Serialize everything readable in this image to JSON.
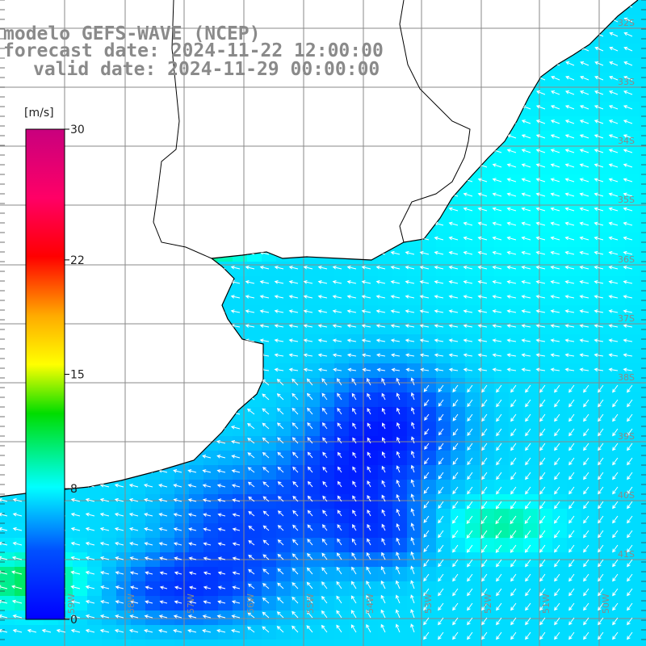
{
  "title": {
    "line1": "modelo GEFS-WAVE (NCEP)",
    "line2": "forecast date: 2024-11-22 12:00:00",
    "line3": "valid date: 2024-11-29 00:00:00"
  },
  "colorbar": {
    "unit": "[m/s]",
    "ticks": [
      {
        "value": 30,
        "label": "30"
      },
      {
        "value": 22,
        "label": "22"
      },
      {
        "value": 15,
        "label": "15"
      },
      {
        "value": 8,
        "label": "8"
      },
      {
        "value": 0,
        "label": "0"
      }
    ],
    "min": 0,
    "max": 30
  },
  "grid": {
    "lat_labels": [
      "32S",
      "33S",
      "34S",
      "35S",
      "36S",
      "37S",
      "38S",
      "39S",
      "40S",
      "41S"
    ],
    "lon_labels": [
      "59W",
      "58W",
      "57W",
      "56W",
      "55W",
      "54W",
      "53W",
      "52W",
      "51W",
      "50W"
    ]
  },
  "colors": {
    "land": "#ffffff",
    "coast": "#000000",
    "gridline": "#8a8a8a",
    "arrow": "#ffffff",
    "title": "#8a8a8a"
  }
}
